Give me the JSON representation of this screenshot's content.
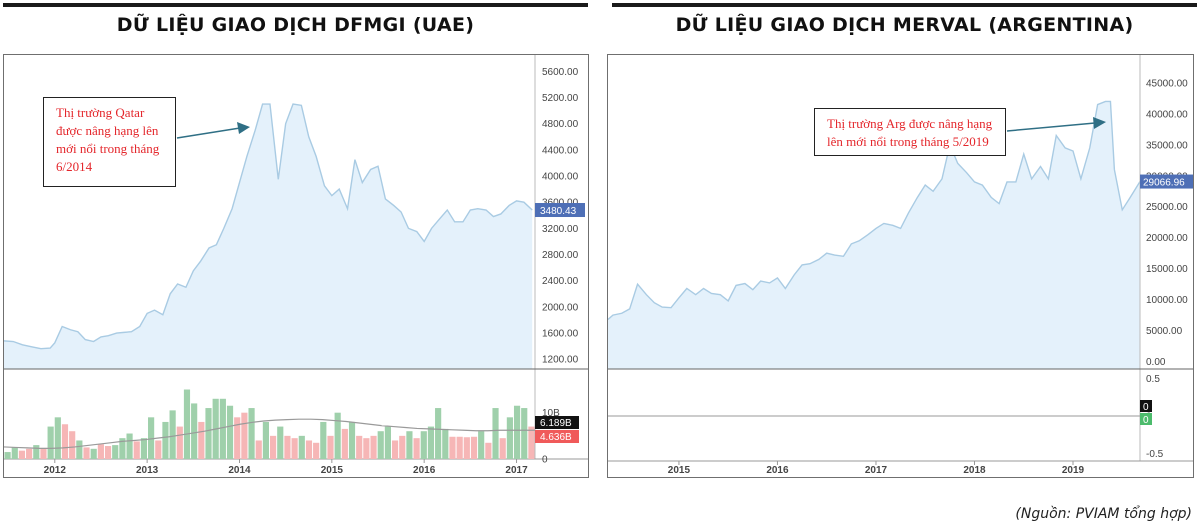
{
  "source_note": "(Nguồn: PVIAM tổng hợp)",
  "chart_data": [
    {
      "title": "DỮ LIỆU GIAO DỊCH DFMGI (UAE)",
      "type": "area",
      "annotation": "Thị trường Qatar được nâng hạng lên mới nổi trong tháng 6/2014",
      "price_axis": {
        "ticks": [
          "5600.00",
          "5200.00",
          "4800.00",
          "4400.00",
          "4000.00",
          "3600.00",
          "3200.00",
          "2800.00",
          "2400.00",
          "2000.00",
          "1600.00",
          "1200.00"
        ],
        "tick_values": [
          5600,
          5200,
          4800,
          4400,
          4000,
          3600,
          3200,
          2800,
          2400,
          2000,
          1600,
          1200
        ],
        "ylim": [
          1050,
          5850
        ],
        "last_value": 3480.43,
        "last_label": "3480.43"
      },
      "x_axis": {
        "ticks": [
          "2012",
          "2013",
          "2014",
          "2015",
          "2016",
          "2017"
        ],
        "tick_values": [
          2012,
          2013,
          2014,
          2015,
          2016,
          2017
        ],
        "xlim": [
          2011.45,
          2017.2
        ]
      },
      "series": [
        {
          "x": [
            2011.45,
            2011.55,
            2011.65,
            2011.75,
            2011.85,
            2011.95,
            2012.0,
            2012.08,
            2012.17,
            2012.25,
            2012.33,
            2012.42,
            2012.5,
            2012.58,
            2012.67,
            2012.75,
            2012.83,
            2012.92,
            2013.0,
            2013.08,
            2013.17,
            2013.25,
            2013.33,
            2013.42,
            2013.5,
            2013.58,
            2013.67,
            2013.75,
            2013.83,
            2013.92,
            2014.0,
            2014.08,
            2014.17,
            2014.25,
            2014.33,
            2014.42,
            2014.5,
            2014.58,
            2014.67,
            2014.75,
            2014.83,
            2014.92,
            2015.0,
            2015.08,
            2015.17,
            2015.25,
            2015.33,
            2015.42,
            2015.5,
            2015.58,
            2015.67,
            2015.75,
            2015.83,
            2015.92,
            2016.0,
            2016.08,
            2016.17,
            2016.25,
            2016.33,
            2016.42,
            2016.5,
            2016.58,
            2016.67,
            2016.75,
            2016.83,
            2016.92,
            2017.0,
            2017.08,
            2017.17
          ],
          "values": [
            1480,
            1470,
            1420,
            1390,
            1360,
            1370,
            1450,
            1700,
            1650,
            1620,
            1500,
            1470,
            1540,
            1560,
            1600,
            1610,
            1620,
            1700,
            1900,
            1950,
            1880,
            2200,
            2350,
            2300,
            2550,
            2700,
            2900,
            2950,
            3200,
            3500,
            3900,
            4300,
            4700,
            5100,
            5100,
            3950,
            4800,
            5100,
            5080,
            4600,
            4300,
            3850,
            3700,
            3800,
            3500,
            4250,
            3900,
            4100,
            4150,
            3650,
            3550,
            3450,
            3200,
            3150,
            3000,
            3200,
            3350,
            3480,
            3300,
            3300,
            3480,
            3500,
            3480,
            3380,
            3420,
            3550,
            3620,
            3600,
            3480
          ]
        }
      ],
      "volume": {
        "axis_ticks": [
          "10B",
          "0"
        ],
        "tick_values": [
          10,
          0
        ],
        "ylim": [
          0,
          19
        ],
        "ma_label": "6.189B",
        "last_label": "4.636B",
        "bars": [
          1.5,
          2.5,
          1.8,
          2.2,
          3.0,
          2.4,
          7,
          9,
          7.5,
          6,
          4,
          2.5,
          2.2,
          3.2,
          2.8,
          3,
          4.5,
          5.5,
          3.8,
          4.5,
          9,
          4,
          8,
          10.5,
          7,
          15,
          12,
          8,
          11,
          13,
          13,
          11.5,
          9,
          10,
          11,
          4,
          8,
          5,
          7,
          5,
          4.5,
          5,
          4,
          3.5,
          8,
          5,
          10,
          6.5,
          8,
          5,
          4.5,
          5,
          6,
          7,
          4,
          5,
          6,
          4.5,
          6,
          7,
          11,
          6.5,
          4.8,
          4.8,
          4.7,
          4.8,
          6,
          3.5,
          11,
          4.5,
          9,
          11.5,
          11,
          7
        ],
        "bar_up": [
          true,
          true,
          false,
          false,
          true,
          false,
          true,
          true,
          false,
          false,
          true,
          false,
          true,
          false,
          false,
          true,
          true,
          true,
          false,
          true,
          true,
          false,
          true,
          true,
          false,
          true,
          true,
          false,
          true,
          true,
          true,
          true,
          false,
          false,
          true,
          false,
          true,
          false,
          true,
          false,
          false,
          true,
          false,
          false,
          true,
          false,
          true,
          false,
          true,
          false,
          false,
          false,
          true,
          true,
          false,
          false,
          true,
          false,
          true,
          true,
          true,
          true,
          false,
          false,
          false,
          false,
          true,
          false,
          true,
          false,
          true,
          true,
          true,
          false
        ],
        "ma": [
          2.6,
          2.5,
          2.4,
          2.3,
          2.3,
          2.4,
          2.6,
          2.9,
          3.2,
          3.5,
          3.8,
          4.0,
          4.2,
          4.5,
          4.8,
          5.2,
          5.6,
          6.0,
          6.5,
          7.0,
          7.5,
          7.9,
          8.2,
          8.4,
          8.5,
          8.6,
          8.6,
          8.5,
          8.3,
          8.1,
          7.8,
          7.5,
          7.2,
          7.0,
          6.8,
          6.6,
          6.5,
          6.4,
          6.3,
          6.2,
          6.1,
          6.1,
          6.2,
          6.2,
          6.2,
          6.2
        ]
      },
      "colors": {
        "line": "#a9cbe3",
        "fill": "#e4f1fb",
        "up": "#9fd0ab",
        "down": "#f6b6b6",
        "last_price": "#4e6fb6",
        "ma_tag": "#111111",
        "vol_tag": "#f05a5a"
      }
    },
    {
      "title": "DỮ LIỆU GIAO DỊCH MERVAL (ARGENTINA)",
      "type": "area",
      "annotation": "Thị trường Arg được nâng hạng lên mới nổi trong tháng 5/2019",
      "price_axis": {
        "ticks": [
          "45000.00",
          "40000.00",
          "35000.00",
          "30000.00",
          "25000.00",
          "20000.00",
          "15000.00",
          "10000.00",
          "5000.00",
          "0.00"
        ],
        "tick_values": [
          45000,
          40000,
          35000,
          30000,
          25000,
          20000,
          15000,
          10000,
          5000,
          0
        ],
        "ylim": [
          -1200,
          49500
        ],
        "last_value": 29066.96,
        "last_label": "29066.96"
      },
      "x_axis": {
        "ticks": [
          "2015",
          "2016",
          "2017",
          "2018",
          "2019"
        ],
        "tick_values": [
          2015,
          2016,
          2017,
          2018,
          2019
        ],
        "xlim": [
          2014.28,
          2019.68
        ]
      },
      "series": [
        {
          "x": [
            2014.28,
            2014.33,
            2014.42,
            2014.5,
            2014.58,
            2014.67,
            2014.75,
            2014.83,
            2014.92,
            2015.0,
            2015.08,
            2015.17,
            2015.25,
            2015.33,
            2015.42,
            2015.5,
            2015.58,
            2015.67,
            2015.75,
            2015.83,
            2015.92,
            2016.0,
            2016.08,
            2016.17,
            2016.25,
            2016.33,
            2016.42,
            2016.5,
            2016.58,
            2016.67,
            2016.75,
            2016.83,
            2016.92,
            2017.0,
            2017.08,
            2017.17,
            2017.25,
            2017.33,
            2017.42,
            2017.5,
            2017.58,
            2017.67,
            2017.75,
            2017.83,
            2017.92,
            2018.0,
            2018.08,
            2018.17,
            2018.25,
            2018.33,
            2018.42,
            2018.5,
            2018.58,
            2018.67,
            2018.75,
            2018.83,
            2018.92,
            2019.0,
            2019.08,
            2019.17,
            2019.25,
            2019.33,
            2019.38,
            2019.42,
            2019.5,
            2019.58,
            2019.68
          ],
          "values": [
            6800,
            7500,
            7800,
            8500,
            12500,
            10800,
            9500,
            8800,
            8700,
            10300,
            11800,
            10800,
            11800,
            11000,
            10800,
            9800,
            12300,
            12600,
            11600,
            13000,
            12700,
            13500,
            11800,
            14000,
            15600,
            15800,
            16500,
            17500,
            17200,
            17000,
            19000,
            19500,
            20500,
            21500,
            22300,
            22000,
            21500,
            24000,
            26500,
            28500,
            27500,
            29500,
            35000,
            32000,
            30500,
            29000,
            28500,
            26500,
            25500,
            29000,
            29000,
            33500,
            29500,
            31500,
            29500,
            36500,
            34500,
            34000,
            29500,
            34500,
            41500,
            42000,
            42000,
            31000,
            24500,
            26500,
            29066.96
          ]
        }
      ],
      "lower_panel": {
        "axis_ticks": [
          "0.5",
          "0",
          "-0.5"
        ],
        "tick_values": [
          0.5,
          0,
          -0.5
        ],
        "ylim": [
          -0.6,
          0.6
        ],
        "zero_value": 0,
        "tag_black": "0",
        "tag_green": "0"
      },
      "colors": {
        "line": "#a9cbe3",
        "fill": "#e4f1fb",
        "last_price": "#4e6fb6",
        "tag_black": "#111111",
        "tag_green": "#4cbb6c"
      }
    }
  ]
}
